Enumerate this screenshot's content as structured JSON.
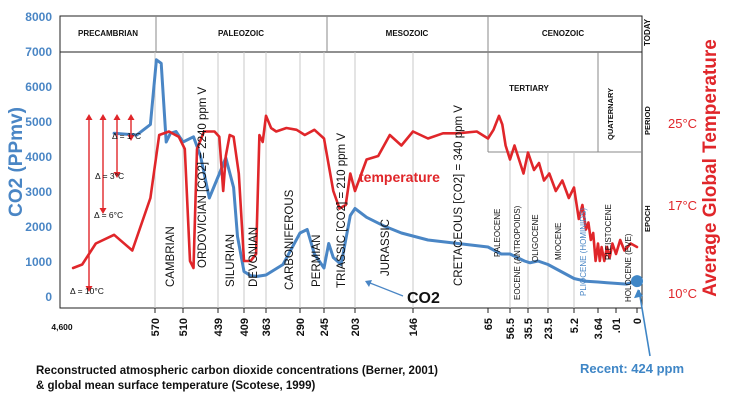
{
  "chart_data": {
    "type": "line",
    "era_labels": [
      "PRECAMBRIAN",
      "PALEOZOIC",
      "MESOZOIC",
      "CENOZOIC",
      "TODAY"
    ],
    "period_labels": [
      "TERTIARY",
      "QUATERNARY",
      "PERIOD"
    ],
    "epoch_axis_label": "EPOCH",
    "geo_labels": [
      "CAMBRIAN",
      "ORDOVICIAN [CO2] = 2240 ppm V",
      "SILURIAN",
      "DEVONIAN",
      "CARBONIFEROUS",
      "PERMIAN",
      "TRIASSIC [CO2] = 210 ppm V",
      "JURASSIC",
      "CRETACEOUS [CO2] = 340 ppm V",
      "PALEOCENE",
      "EOCENE (ANTROPOIDS)",
      "OLIGOCENE",
      "MIOCENE",
      "PLIOCENE (HOMINIDS)",
      "PLEISTOCENE",
      "HOLOCENE (EVE)"
    ],
    "x_tick_labels": [
      "4,600",
      "570",
      "510",
      "439",
      "409",
      "363",
      "290",
      "245",
      "203",
      "146",
      "65",
      "56.5",
      "35.5",
      "23.5",
      "5.2",
      "3.64",
      ".01",
      "0"
    ],
    "ylabel_left": "CO2 (PPmv)",
    "ylabel_right": "Average Global Temperature",
    "y_ticks_left": [
      0,
      1000,
      2000,
      3000,
      4000,
      5000,
      6000,
      7000,
      8000
    ],
    "ylim_left": [
      0,
      8000
    ],
    "temp_ticks": [
      "25°C",
      "17°C",
      "10°C"
    ],
    "delta_labels": [
      "Δ = 1°C",
      "Δ = 3°C",
      "Δ = 6°C",
      "Δ = 10°C"
    ],
    "series": [
      {
        "name": "CO2",
        "color": "#4a86c5",
        "x_index": [
          0.55,
          0.8,
          0.95,
          1.05,
          1.22,
          1.4,
          1.55,
          1.75,
          2.0,
          2.3,
          2.5,
          2.75,
          3.0,
          3.3,
          3.6,
          3.75,
          4.0,
          4.3,
          4.6,
          5.0,
          5.5,
          6.0,
          6.3,
          6.6,
          7.0,
          7.15,
          7.3,
          7.55,
          7.7,
          7.85,
          8.0,
          8.2,
          8.5,
          8.8,
          9.2,
          9.6,
          10.0,
          10.3,
          10.6,
          11.0,
          11.4,
          11.8,
          12.1,
          12.5,
          13.0,
          13.5,
          14.0,
          14.5,
          15.0,
          15.5,
          16.0,
          16.5,
          17.0
        ],
        "values": [
          4650,
          4600,
          4900,
          6750,
          6650,
          4400,
          4650,
          4700,
          4400,
          4550,
          4000,
          2800,
          3400,
          3950,
          3100,
          1700,
          700,
          580,
          560,
          600,
          900,
          1800,
          1900,
          1200,
          800,
          1500,
          1100,
          900,
          1600,
          2300,
          2500,
          2250,
          2000,
          1800,
          1600,
          1500,
          1400,
          1300,
          1200,
          1200,
          1100,
          1000,
          950,
          1000,
          900,
          700,
          500,
          420,
          400,
          380,
          360,
          340,
          424
        ]
      },
      {
        "name": "temperature",
        "color": "#e0262a",
        "x_index": [
          0.1,
          0.2,
          0.35,
          0.55,
          0.75,
          0.95,
          1.15,
          1.5,
          1.85,
          2.05,
          2.2,
          2.3,
          2.4,
          2.6,
          2.9,
          3.05,
          3.2,
          3.3,
          3.45,
          3.6,
          3.8,
          4.0,
          4.3,
          4.55,
          4.7,
          4.85,
          5.0,
          5.15,
          5.3,
          5.6,
          5.9,
          6.2,
          6.6,
          7.0,
          7.3,
          7.5,
          7.7,
          7.85,
          8.0,
          8.2,
          8.4,
          8.6,
          8.8,
          9.0,
          9.2,
          9.4,
          9.6,
          9.85,
          10.0,
          10.25,
          10.5,
          10.65,
          10.8,
          11.0,
          11.25,
          11.5,
          11.75,
          12.0,
          12.3,
          12.55,
          12.8,
          13.05,
          13.3,
          13.55,
          13.8,
          14.0,
          14.2,
          14.35,
          14.5,
          14.6,
          14.7,
          14.8,
          14.9,
          15.0,
          15.1,
          15.2,
          15.35,
          15.5,
          15.65,
          15.8,
          16.0,
          16.2,
          16.4,
          16.7,
          17.0
        ],
        "values": [
          800,
          900,
          1500,
          1750,
          1300,
          2800,
          4600,
          4700,
          4550,
          4200,
          1000,
          800,
          4200,
          4700,
          4700,
          4550,
          3000,
          4000,
          4600,
          4550,
          3500,
          1000,
          1000,
          1200,
          4600,
          4400,
          5150,
          4800,
          4700,
          4800,
          4750,
          4600,
          4750,
          4500,
          3000,
          2500,
          2600,
          3500,
          3000,
          3900,
          4000,
          4600,
          4300,
          4700,
          4500,
          4650,
          4650,
          4700,
          4500,
          4750,
          5150,
          4900,
          4300,
          3900,
          4300,
          3900,
          3500,
          4100,
          3600,
          3800,
          3300,
          3500,
          3000,
          3300,
          2800,
          3100,
          2200,
          2600,
          1900,
          2100,
          1600,
          1800,
          1000,
          1500,
          1000,
          1400,
          1000,
          1400,
          1100,
          1500,
          1200,
          1600,
          1300,
          1500,
          1400
        ]
      }
    ],
    "annotations": [
      "temperature",
      "CO2"
    ],
    "grid": false,
    "recent_label": "Recent: 424 ppm",
    "caption_line1": "Reconstructed atmospheric carbon dioxide concentrations (Berner, 2001)",
    "caption_line2": "& global mean surface temperature (Scotese, 1999)"
  }
}
